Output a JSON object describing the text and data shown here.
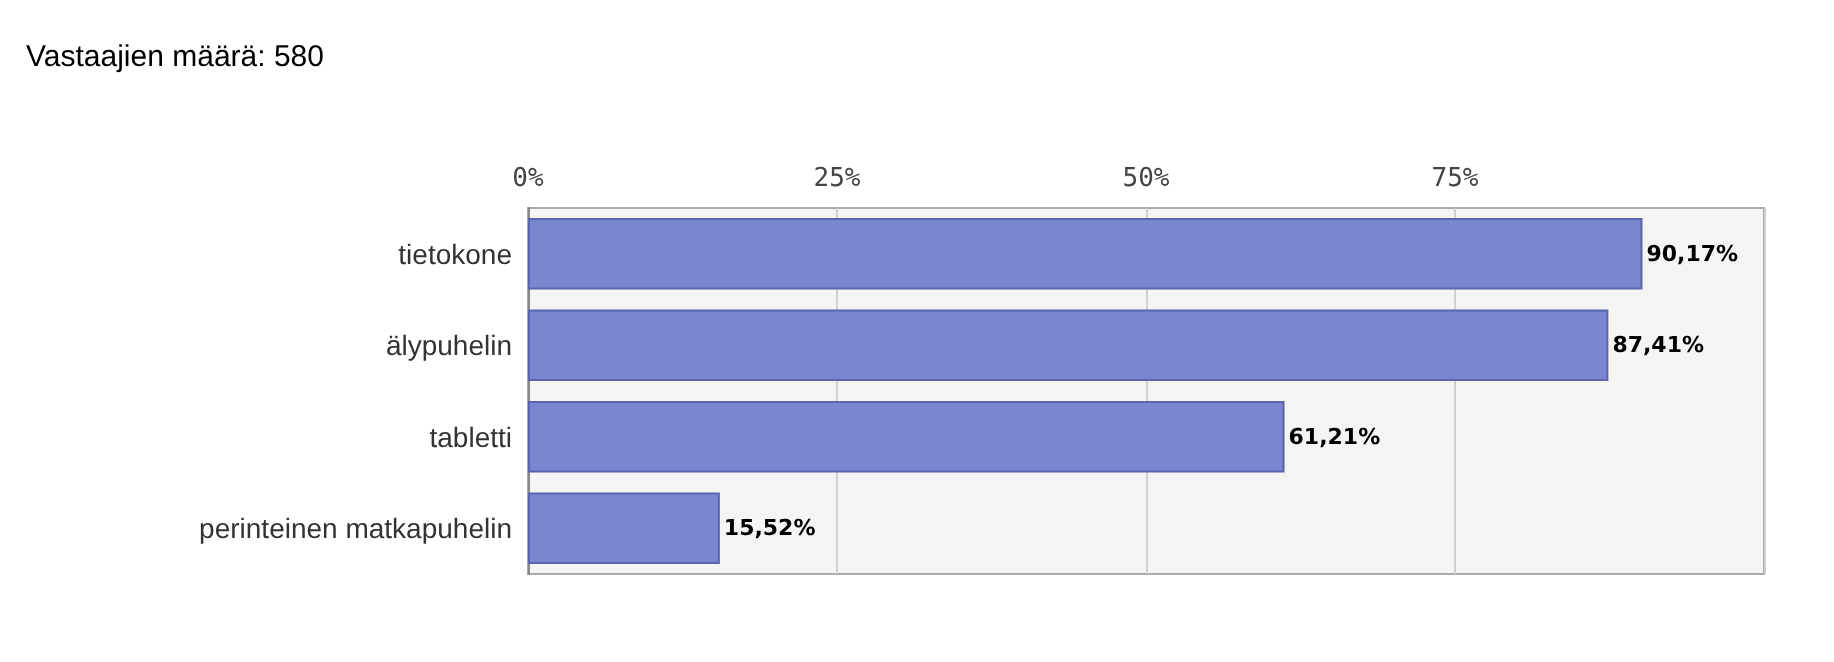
{
  "chart_data": {
    "type": "bar",
    "orientation": "horizontal",
    "title": "Vastaajien määrä: 580",
    "categories": [
      "tietokone",
      "älypuhelin",
      "tabletti",
      "perinteinen matkapuhelin"
    ],
    "values": [
      90.17,
      87.41,
      61.21,
      15.52
    ],
    "value_labels": [
      "90,17%",
      "87,41%",
      "61,21%",
      "15,52%"
    ],
    "color": "#7b86d0",
    "xlim": [
      0,
      100
    ],
    "xticks": [
      {
        "value": 0,
        "label": "0%"
      },
      {
        "value": 25,
        "label": "25%"
      },
      {
        "value": 50,
        "label": "50%"
      },
      {
        "value": 75,
        "label": "75%"
      },
      {
        "value": 100,
        "label": null
      }
    ],
    "grid": "x"
  }
}
